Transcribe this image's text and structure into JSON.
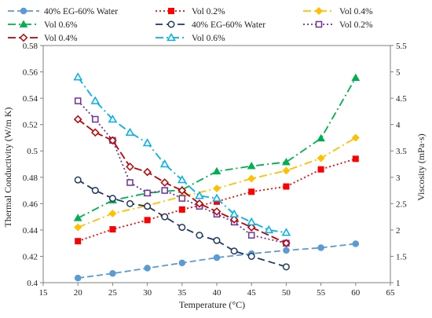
{
  "chart_data": {
    "type": "line",
    "xlabel": "Temperature (°C)",
    "ylabel": "Thermal Conductivity (W/m K)",
    "y2label": "Viscosity (mPa·s)",
    "xlim": [
      15,
      65
    ],
    "xticks": [
      15,
      20,
      25,
      30,
      35,
      40,
      45,
      50,
      55,
      60,
      65
    ],
    "ylim": [
      0.4,
      0.58
    ],
    "yticks": [
      0.4,
      0.42,
      0.44,
      0.46,
      0.48,
      0.5,
      0.52,
      0.54,
      0.56,
      0.58
    ],
    "y2lim": [
      1,
      5.5
    ],
    "y2ticks": [
      1,
      1.5,
      2,
      2.5,
      3,
      3.5,
      4,
      4.5,
      5,
      5.5
    ],
    "grid": false,
    "legend_position": "top",
    "series": [
      {
        "name": "40% EG-60% Water",
        "axis": "left",
        "color": "#5B9BD5",
        "marker": "circle",
        "dash": "8,4",
        "x": [
          20,
          25,
          30,
          35,
          40,
          45,
          50,
          55,
          60
        ],
        "y": [
          0.4035,
          0.407,
          0.411,
          0.415,
          0.419,
          0.422,
          0.4245,
          0.4265,
          0.4295
        ]
      },
      {
        "name": "Vol 0.2%",
        "axis": "left",
        "color": "#FF0000",
        "marker": "square",
        "dash": "2,3",
        "x": [
          20,
          25,
          30,
          35,
          40,
          45,
          50,
          55,
          60
        ],
        "y": [
          0.4315,
          0.4405,
          0.4475,
          0.4555,
          0.4615,
          0.469,
          0.473,
          0.486,
          0.494
        ]
      },
      {
        "name": "Vol 0.4%",
        "axis": "left",
        "color": "#FFC000",
        "marker": "diamond",
        "dash": "10,4,2,4",
        "x": [
          20,
          25,
          30,
          35,
          40,
          45,
          50,
          55,
          60
        ],
        "y": [
          0.442,
          0.4525,
          0.4585,
          0.4655,
          0.4715,
          0.479,
          0.485,
          0.4945,
          0.51
        ]
      },
      {
        "name": "Vol 0.6%",
        "axis": "left",
        "color": "#00B050",
        "marker": "triangle",
        "dash": "10,4,2,4",
        "x": [
          20,
          25,
          30,
          35,
          40,
          45,
          50,
          55,
          60
        ],
        "y": [
          0.449,
          0.4625,
          0.468,
          0.4705,
          0.4845,
          0.4885,
          0.4915,
          0.5095,
          0.5555
        ]
      },
      {
        "name": "40% EG-60% Water",
        "axis": "right",
        "color": "#1F3864",
        "marker": "circle-open",
        "dash": "9,5",
        "x": [
          20,
          22.5,
          25,
          27.5,
          30,
          32.5,
          35,
          37.5,
          40,
          42.5,
          45,
          50
        ],
        "y": [
          2.95,
          2.75,
          2.6,
          2.5,
          2.45,
          2.25,
          2.05,
          1.9,
          1.8,
          1.6,
          1.5,
          1.3
        ]
      },
      {
        "name": "Vol 0.2%",
        "axis": "right",
        "color": "#7030A0",
        "marker": "square-open",
        "dash": "2,3",
        "x": [
          20,
          22.5,
          25,
          27.5,
          30,
          32.5,
          35,
          37.5,
          40,
          42.5,
          45,
          50
        ],
        "y": [
          4.45,
          4.1,
          3.7,
          2.9,
          2.7,
          2.75,
          2.6,
          2.45,
          2.3,
          2.15,
          1.9,
          1.75
        ]
      },
      {
        "name": "Vol 0.4%",
        "axis": "right",
        "color": "#C00000",
        "marker": "diamond-open",
        "dash": "10,4",
        "x": [
          20,
          22.5,
          25,
          27.5,
          30,
          32.5,
          35,
          37.5,
          40,
          42.5,
          45,
          50
        ],
        "y": [
          4.1,
          3.85,
          3.7,
          3.2,
          3.1,
          2.9,
          2.75,
          2.5,
          2.35,
          2.2,
          2.05,
          1.75
        ]
      },
      {
        "name": "Vol 0.6%",
        "axis": "right",
        "color": "#00B0F0",
        "marker": "triangle-open",
        "dash": "10,4,2,4",
        "x": [
          20,
          22.5,
          25,
          27.5,
          30,
          32.5,
          35,
          37.5,
          40,
          42.5,
          45,
          47.5,
          50
        ],
        "y": [
          4.9,
          4.45,
          4.1,
          3.85,
          3.65,
          3.25,
          2.95,
          2.65,
          2.6,
          2.3,
          2.15,
          2.0,
          1.95
        ]
      }
    ]
  }
}
